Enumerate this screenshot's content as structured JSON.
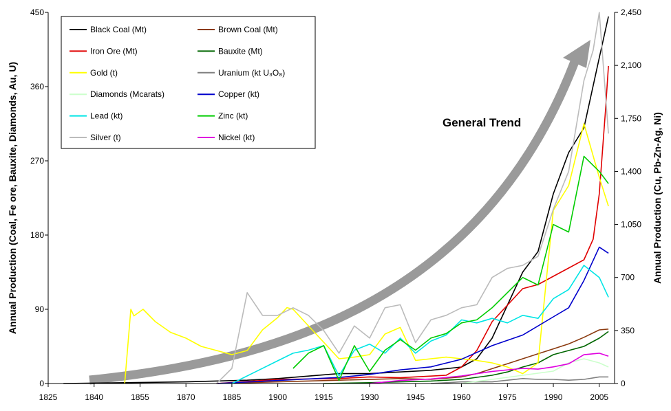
{
  "chart_data": {
    "type": "line",
    "ylabel_left": "Annual Production (Coal, Fe ore, Bauxite, Diamonds, Au, U)",
    "ylabel_right": "Annual Production (Cu, Pb-Zn-Ag, Ni)",
    "xlim": [
      1825,
      2010
    ],
    "ylim_left": [
      0,
      450
    ],
    "ylim_right": [
      0,
      2450
    ],
    "x_ticks": [
      "1825",
      "1840",
      "1855",
      "1870",
      "1885",
      "1900",
      "1915",
      "1930",
      "1945",
      "1960",
      "1975",
      "1990",
      "2005"
    ],
    "y_ticks_left": [
      "0",
      "90",
      "180",
      "270",
      "360",
      "450"
    ],
    "y_ticks_right": [
      "0",
      "350",
      "700",
      "1,050",
      "1,400",
      "1,750",
      "2,100",
      "2,450"
    ],
    "grid": false,
    "legend_position": "top-left",
    "annotation": "General Trend",
    "series": [
      {
        "name": "Black Coal (Mt)",
        "axis": "left",
        "color": "#000000",
        "x": [
          1830,
          1850,
          1870,
          1890,
          1900,
          1910,
          1920,
          1930,
          1940,
          1950,
          1955,
          1960,
          1965,
          1970,
          1975,
          1980,
          1985,
          1990,
          1995,
          2000,
          2005,
          2008
        ],
        "y": [
          0,
          1,
          2,
          4,
          6,
          9,
          12,
          12,
          14,
          16,
          18,
          20,
          30,
          55,
          95,
          135,
          160,
          230,
          280,
          310,
          395,
          445
        ]
      },
      {
        "name": "Brown Coal (Mt)",
        "axis": "left",
        "color": "#8B3A0F",
        "x": [
          1880,
          1900,
          1920,
          1940,
          1950,
          1960,
          1965,
          1970,
          1975,
          1980,
          1985,
          1990,
          1995,
          2000,
          2005,
          2008
        ],
        "y": [
          0,
          2,
          4,
          6,
          5,
          8,
          12,
          18,
          24,
          30,
          36,
          42,
          48,
          56,
          65,
          66
        ]
      },
      {
        "name": "Iron Ore (Mt)",
        "axis": "left",
        "color": "#E00000",
        "x": [
          1880,
          1900,
          1920,
          1930,
          1940,
          1950,
          1955,
          1960,
          1965,
          1970,
          1975,
          1980,
          1985,
          1990,
          1995,
          2000,
          2003,
          2005,
          2007,
          2008
        ],
        "y": [
          0,
          5,
          6,
          8,
          7,
          9,
          10,
          20,
          40,
          75,
          95,
          115,
          120,
          130,
          140,
          150,
          175,
          230,
          330,
          385
        ]
      },
      {
        "name": "Bauxite (Mt)",
        "axis": "left",
        "color": "#006600",
        "x": [
          1915,
          1930,
          1940,
          1950,
          1960,
          1970,
          1975,
          1980,
          1985,
          1990,
          1995,
          2000,
          2005,
          2008
        ],
        "y": [
          0,
          1,
          2,
          3,
          5,
          10,
          14,
          20,
          25,
          35,
          40,
          45,
          55,
          63
        ]
      },
      {
        "name": "Gold (t)",
        "axis": "left",
        "color": "#FFFF00",
        "x": [
          1850,
          1852,
          1853,
          1856,
          1860,
          1865,
          1870,
          1875,
          1880,
          1885,
          1890,
          1895,
          1900,
          1903,
          1905,
          1910,
          1915,
          1920,
          1925,
          1930,
          1935,
          1940,
          1945,
          1950,
          1955,
          1960,
          1965,
          1970,
          1975,
          1980,
          1985,
          1990,
          1995,
          2000,
          2005,
          2008
        ],
        "y": [
          0,
          90,
          82,
          90,
          75,
          62,
          55,
          45,
          40,
          35,
          40,
          65,
          80,
          92,
          90,
          70,
          50,
          30,
          32,
          35,
          60,
          68,
          28,
          30,
          32,
          30,
          28,
          25,
          20,
          12,
          25,
          210,
          240,
          315,
          250,
          215
        ]
      },
      {
        "name": "Uranium  (kt U₃O₈)",
        "axis": "left",
        "color": "#808080",
        "x": [
          1950,
          1960,
          1965,
          1970,
          1975,
          1980,
          1985,
          1990,
          1995,
          2000,
          2005,
          2008
        ],
        "y": [
          0,
          2,
          2,
          2,
          4,
          6,
          5,
          5,
          4,
          5,
          8,
          8
        ]
      },
      {
        "name": "Diamonds (Mcarats)",
        "axis": "left",
        "color": "#CCFFCC",
        "x": [
          1960,
          1970,
          1980,
          1990,
          1995,
          2000,
          2005,
          2008
        ],
        "y": [
          0,
          5,
          10,
          15,
          25,
          30,
          25,
          20
        ]
      },
      {
        "name": "Copper (kt)",
        "axis": "right",
        "color": "#0000CC",
        "x": [
          1880,
          1900,
          1920,
          1930,
          1940,
          1950,
          1960,
          1970,
          1980,
          1990,
          1995,
          2000,
          2005,
          2008
        ],
        "y": [
          0,
          20,
          40,
          60,
          90,
          110,
          160,
          250,
          320,
          440,
          500,
          680,
          900,
          860
        ]
      },
      {
        "name": "Lead (kt)",
        "axis": "right",
        "color": "#00E5E5",
        "x": [
          1885,
          1900,
          1905,
          1910,
          1915,
          1920,
          1925,
          1930,
          1935,
          1940,
          1945,
          1950,
          1955,
          1960,
          1965,
          1970,
          1975,
          1980,
          1985,
          1990,
          1995,
          2000,
          2005,
          2008
        ],
        "y": [
          0,
          150,
          200,
          220,
          250,
          50,
          220,
          260,
          200,
          300,
          200,
          280,
          320,
          420,
          400,
          430,
          400,
          450,
          430,
          560,
          620,
          780,
          700,
          570
        ]
      },
      {
        "name": "Zinc (kt)",
        "axis": "right",
        "color": "#00CC00",
        "x": [
          1905,
          1910,
          1915,
          1920,
          1925,
          1930,
          1935,
          1940,
          1945,
          1950,
          1955,
          1960,
          1965,
          1970,
          1975,
          1980,
          1985,
          1990,
          1995,
          2000,
          2005,
          2008
        ],
        "y": [
          100,
          200,
          250,
          20,
          250,
          80,
          220,
          290,
          220,
          300,
          330,
          400,
          420,
          500,
          600,
          700,
          650,
          1050,
          1000,
          1500,
          1400,
          1320
        ]
      },
      {
        "name": "Silver (t)",
        "axis": "right",
        "color": "#BBBBBB",
        "x": [
          1880,
          1885,
          1890,
          1895,
          1900,
          1905,
          1910,
          1915,
          1920,
          1925,
          1930,
          1935,
          1940,
          1945,
          1950,
          1955,
          1960,
          1965,
          1970,
          1975,
          1980,
          1985,
          1990,
          1995,
          2000,
          2003,
          2005,
          2008
        ],
        "y": [
          0,
          100,
          600,
          450,
          450,
          500,
          450,
          350,
          200,
          380,
          300,
          500,
          520,
          270,
          420,
          450,
          500,
          520,
          700,
          760,
          780,
          840,
          1150,
          1400,
          2000,
          2200,
          2450,
          1650
        ]
      },
      {
        "name": "Nickel (kt)",
        "axis": "right",
        "color": "#E000E0",
        "x": [
          1930,
          1940,
          1950,
          1960,
          1970,
          1980,
          1985,
          1990,
          1995,
          2000,
          2005,
          2008
        ],
        "y": [
          0,
          20,
          30,
          50,
          80,
          100,
          95,
          110,
          130,
          190,
          200,
          180
        ]
      }
    ]
  }
}
